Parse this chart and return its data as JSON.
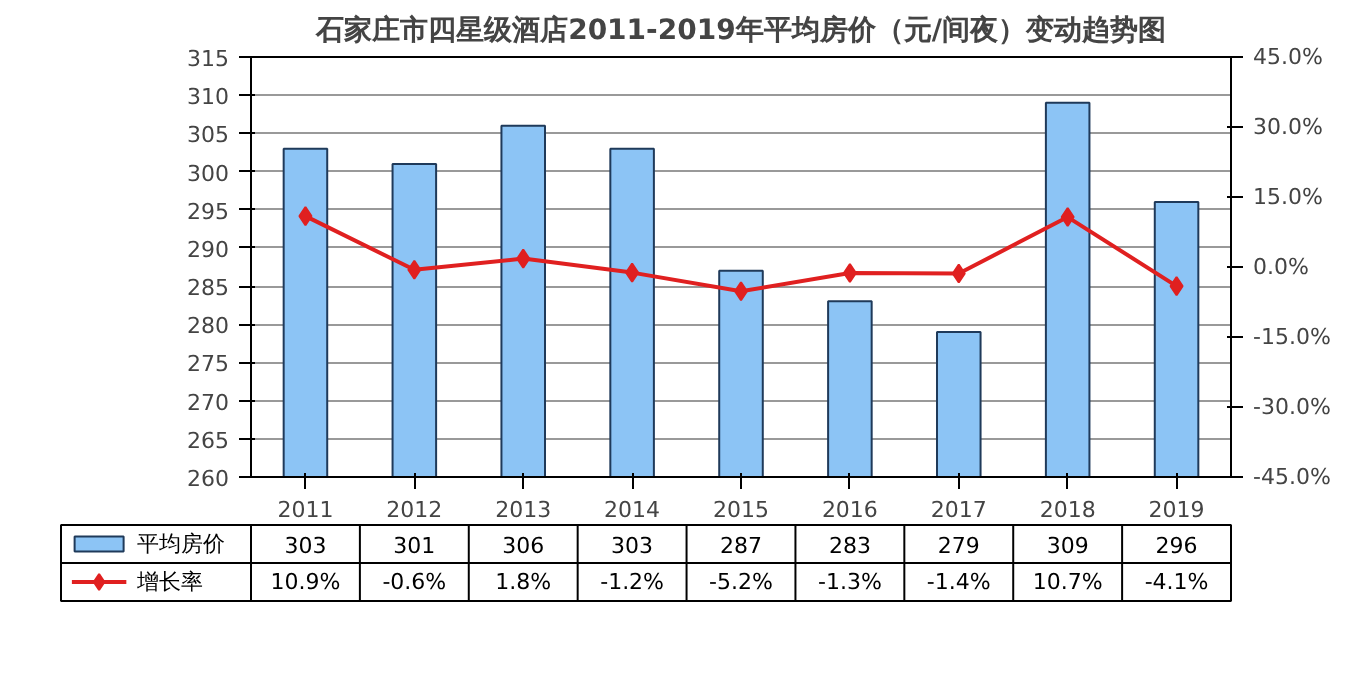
{
  "chart_data": {
    "type": "bar",
    "title": "石家庄市四星级酒店2011-2019年平均房价（元/间夜）变动趋势图",
    "categories": [
      "2011",
      "2012",
      "2013",
      "2014",
      "2015",
      "2016",
      "2017",
      "2018",
      "2019"
    ],
    "series": [
      {
        "name": "平均房价",
        "color": "#8cc4f5",
        "values": [
          303,
          301,
          306,
          303,
          287,
          283,
          279,
          309,
          296
        ],
        "value_labels": [
          "303",
          "301",
          "306",
          "303",
          "287",
          "283",
          "279",
          "309",
          "296"
        ]
      },
      {
        "name": "增长率",
        "type": "line",
        "axis": "y2",
        "marker": "diamond",
        "color": "#e02020",
        "values": [
          10.9,
          -0.6,
          1.8,
          -1.2,
          -5.2,
          -1.3,
          -1.4,
          10.7,
          -4.1
        ],
        "value_labels": [
          "10.9%",
          "-0.6%",
          "1.8%",
          "-1.2%",
          "-5.2%",
          "-1.3%",
          "-1.4%",
          "10.7%",
          "-4.1%"
        ]
      }
    ],
    "ylim": [
      260,
      315
    ],
    "yticks": [
      260,
      265,
      270,
      275,
      280,
      285,
      290,
      295,
      300,
      305,
      310,
      315
    ],
    "y2lim": [
      -45,
      45
    ],
    "y2ticks": [
      {
        "value": -45,
        "label": "-45.0%"
      },
      {
        "value": -30,
        "label": "-30.0%"
      },
      {
        "value": -15,
        "label": "-15.0%"
      },
      {
        "value": 0,
        "label": "0.0%"
      },
      {
        "value": 15,
        "label": "15.0%"
      },
      {
        "value": 30,
        "label": "30.0%"
      },
      {
        "value": 45,
        "label": "45.0%"
      }
    ],
    "grid": "y",
    "legend": "bottom"
  }
}
